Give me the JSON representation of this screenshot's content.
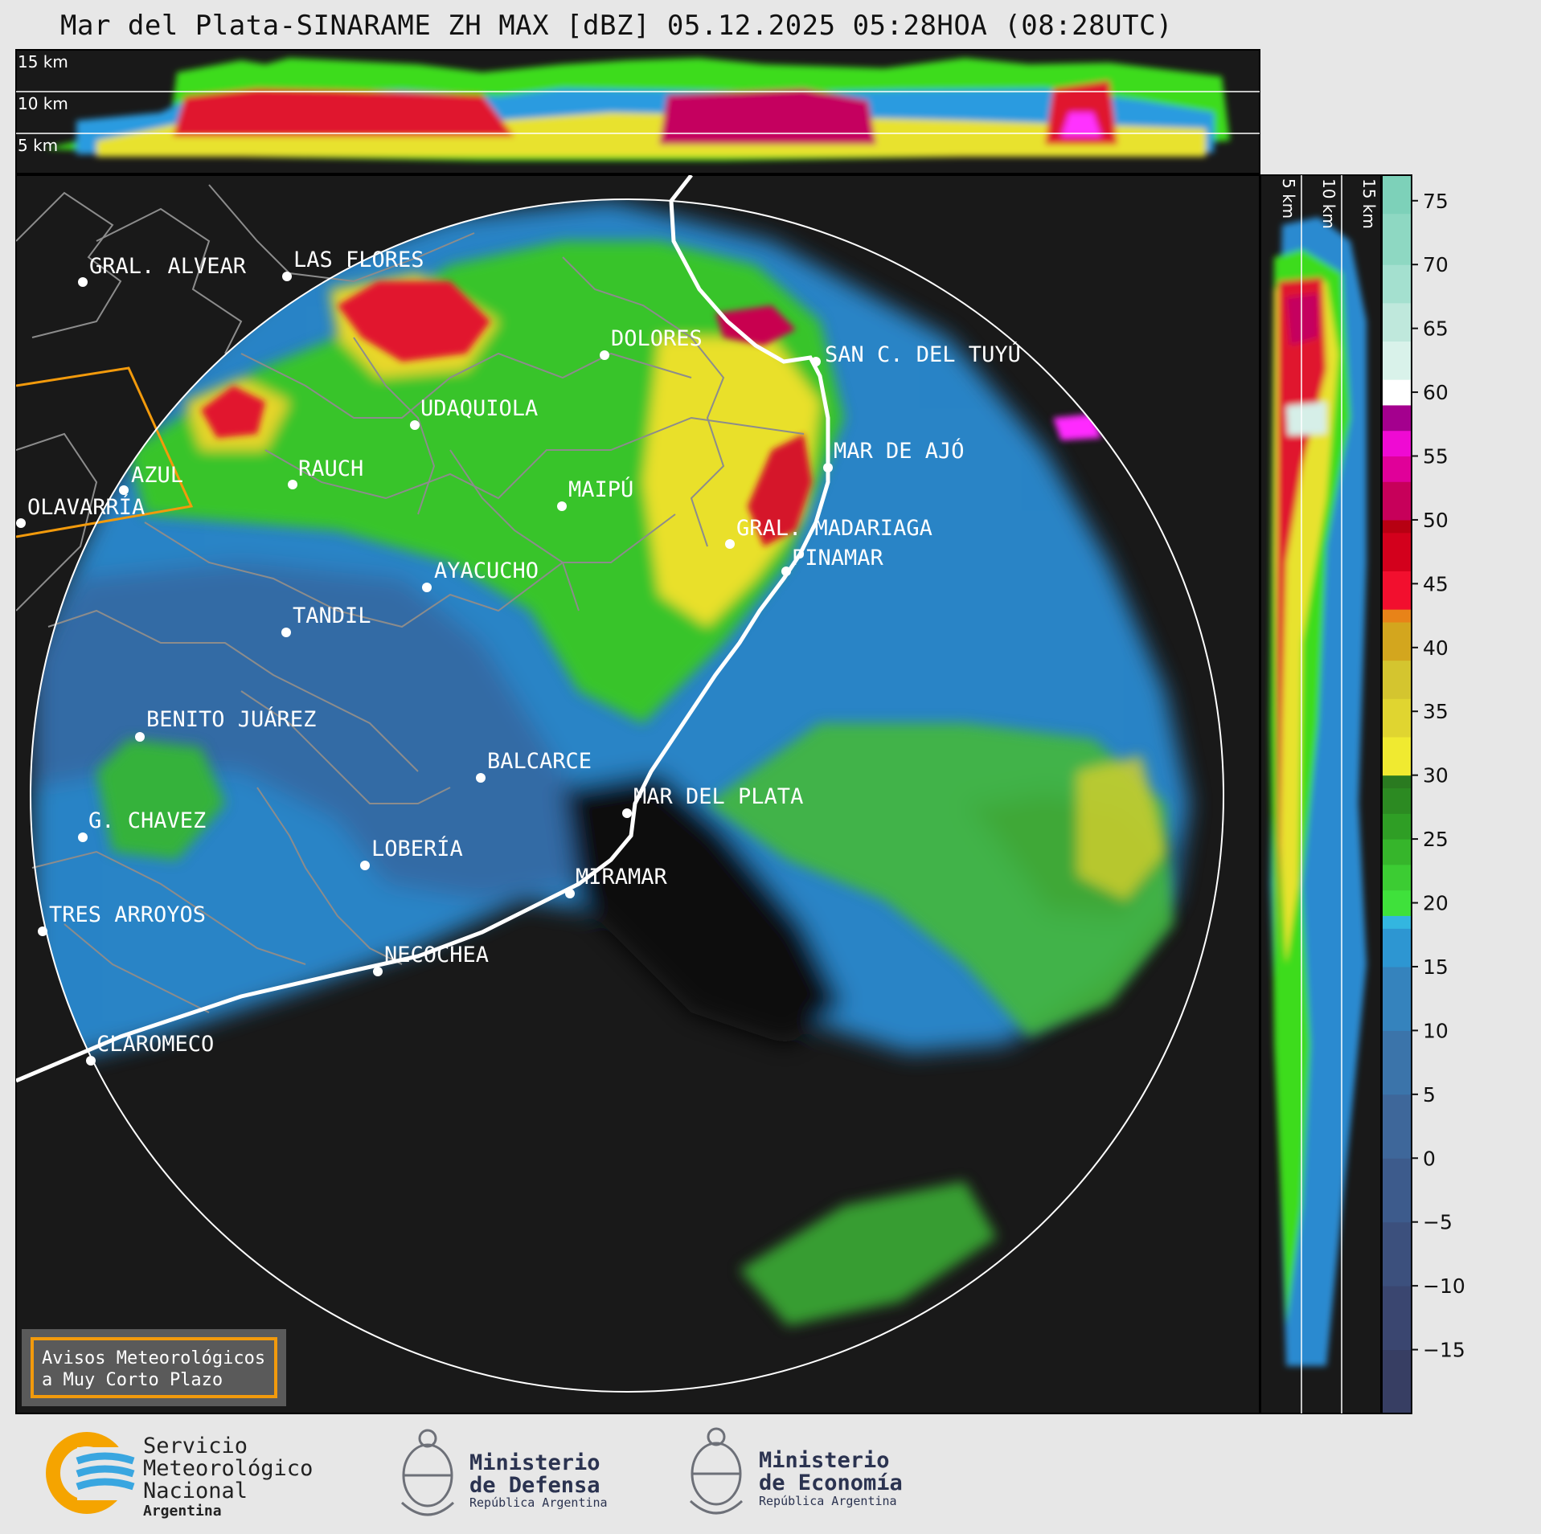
{
  "title": "Mar del Plata-SINARAME ZH MAX [dBZ] 05.12.2025 05:28HOA (08:28UTC)",
  "top_panel": {
    "height_labels": [
      "15 km",
      "10 km",
      "5 km"
    ]
  },
  "side_panel": {
    "height_labels": [
      "5 km",
      "10 km",
      "15 km"
    ]
  },
  "colorbar": {
    "unit": "dBZ",
    "ticks": [
      "75",
      "70",
      "65",
      "60",
      "55",
      "50",
      "45",
      "40",
      "35",
      "30",
      "25",
      "20",
      "15",
      "10",
      "5",
      "0",
      "−5",
      "−10",
      "−15"
    ],
    "range": [
      -20,
      77
    ]
  },
  "cities": [
    {
      "name": "GRAL. ALVEAR"
    },
    {
      "name": "LAS FLORES"
    },
    {
      "name": "DOLORES"
    },
    {
      "name": "SAN C. DEL TUYÚ"
    },
    {
      "name": "UDAQUIOLA"
    },
    {
      "name": "AZUL"
    },
    {
      "name": "RAUCH"
    },
    {
      "name": "MAR DE AJÓ"
    },
    {
      "name": "OLAVARRÍA"
    },
    {
      "name": "MAIPÚ"
    },
    {
      "name": "GRAL. MADARIAGA"
    },
    {
      "name": "AYACUCHO"
    },
    {
      "name": "PINAMAR"
    },
    {
      "name": "TANDIL"
    },
    {
      "name": "BENITO JUÁREZ"
    },
    {
      "name": "BALCARCE"
    },
    {
      "name": "MAR DEL PLATA"
    },
    {
      "name": "G. CHAVEZ"
    },
    {
      "name": "LOBERÍA"
    },
    {
      "name": "MIRAMAR"
    },
    {
      "name": "TRES ARROYOS"
    },
    {
      "name": "NECOCHEA"
    },
    {
      "name": "CLAROMECO"
    }
  ],
  "warning_box": {
    "line1": "Avisos Meteorológicos",
    "line2": "a Muy Corto Plazo"
  },
  "logos": {
    "smn": {
      "line1": "Servicio",
      "line2": "Meteorológico",
      "line3": "Nacional",
      "line4": "Argentina"
    },
    "defensa": {
      "line1": "Ministerio",
      "line2": "de Defensa",
      "line3": "República Argentina"
    },
    "economia": {
      "line1": "Ministerio",
      "line2": "de Economía",
      "line3": "República Argentina"
    }
  },
  "colors": {
    "background": "#191919",
    "coast": "#ffffff",
    "border": "#8c8c8c",
    "warning_polygon": "#f29a0c",
    "range_ring": "#ffffff"
  }
}
